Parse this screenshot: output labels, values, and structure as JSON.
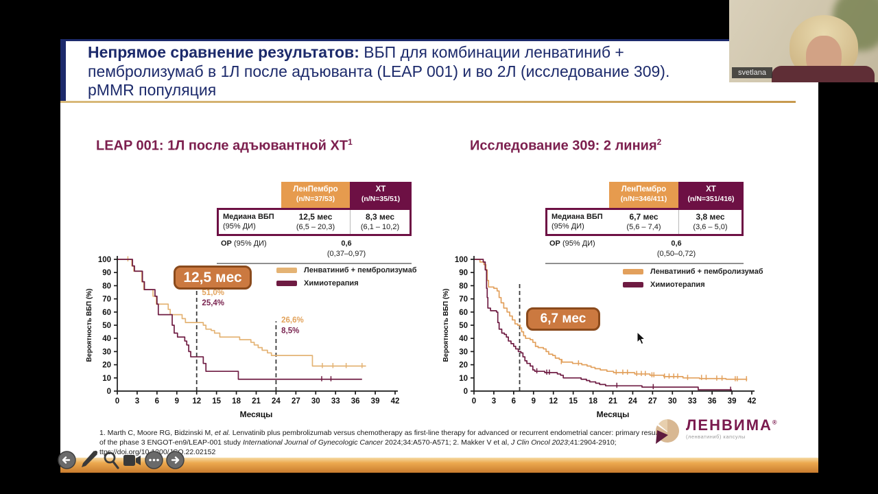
{
  "meeting": {
    "participant_name": "svetlana"
  },
  "title": {
    "bold": "Непрямое сравнение результатов:",
    "line1_rest": " ВБП для комбинации ленватиниб +",
    "line2": "пембролизумаб в 1Л после адъюванта (LEAP 001) и во 2Л (исследование 309).",
    "line3": "pMMR популяция"
  },
  "panels": [
    {
      "table": {
        "columns": [
          {
            "name": "ЛенПембро",
            "n": "(n/N=37/53)"
          },
          {
            "name": "ХТ",
            "n": "(n/N=35/51)"
          }
        ],
        "median": {
          "label": "Медиана ВБП",
          "label_sub": "(95% ДИ)",
          "cells": [
            {
              "value": "12,5 мес",
              "ci": "(6,5 – 20,3)"
            },
            {
              "value": "8,3 мес",
              "ci": "(6,1 – 10,2)"
            }
          ]
        },
        "hr": {
          "label": "ОР",
          "label_sub": " (95% ДИ)",
          "value": "0,6",
          "ci": "(0,37–0,97)"
        }
      }
    },
    {
      "table": {
        "columns": [
          {
            "name": "ЛенПембро",
            "n": "(n/N=346/411)"
          },
          {
            "name": "ХТ",
            "n": "(n/N=351/416)"
          }
        ],
        "median": {
          "label": "Медиана ВБП",
          "label_sub": "(95% ДИ)",
          "cells": [
            {
              "value": "6,7 мес",
              "ci": "(5,6 – 7,4)"
            },
            {
              "value": "3,8 мес",
              "ci": "(3,6 – 5,0)"
            }
          ]
        },
        "hr": {
          "label": "ОР",
          "label_sub": " (95% ДИ)",
          "value": "0,6",
          "ci": "(0,50–0,72)"
        }
      }
    }
  ],
  "chart_data": [
    {
      "type": "line",
      "subtype": "kaplan-meier-step",
      "title": "LEAP 001: 1Л после адъювантной ХТ",
      "title_sup": "1",
      "xlabel": "Месяцы",
      "ylabel": "Вероятность ВБП (%)",
      "xlim": [
        0,
        42
      ],
      "ylim": [
        0,
        100
      ],
      "xticks": [
        0,
        3,
        6,
        9,
        12,
        15,
        18,
        21,
        24,
        27,
        30,
        33,
        36,
        39,
        42
      ],
      "yticks": [
        0,
        10,
        20,
        30,
        40,
        50,
        60,
        70,
        80,
        90,
        100
      ],
      "median_label": "12,5 мес",
      "dashed_lines": [
        {
          "x": 12,
          "top": 78
        },
        {
          "x": 24,
          "top": 53
        }
      ],
      "annotations": [
        {
          "x": 12.8,
          "y": 73,
          "text": "51,0%",
          "color": "#e2a35c"
        },
        {
          "x": 12.8,
          "y": 65,
          "text": "25,4%",
          "color": "#7a2450"
        },
        {
          "x": 24.8,
          "y": 52,
          "text": "26,6%",
          "color": "#e2a35c"
        },
        {
          "x": 24.8,
          "y": 44,
          "text": "8,5%",
          "color": "#7a2450"
        }
      ],
      "series": [
        {
          "name": "Ленватиниб + пембролизумаб",
          "color": "#e4b374",
          "points": [
            [
              0,
              100
            ],
            [
              1.9,
              100
            ],
            [
              2.2,
              95
            ],
            [
              2.5,
              91
            ],
            [
              3.4,
              91
            ],
            [
              3.7,
              83
            ],
            [
              4.0,
              77
            ],
            [
              5.1,
              77
            ],
            [
              5.4,
              72
            ],
            [
              5.9,
              66
            ],
            [
              7.4,
              66
            ],
            [
              7.7,
              62
            ],
            [
              8.0,
              58
            ],
            [
              9.4,
              58
            ],
            [
              9.8,
              55
            ],
            [
              10.3,
              52
            ],
            [
              12.5,
              52
            ],
            [
              13.0,
              50
            ],
            [
              13.4,
              47
            ],
            [
              14.2,
              46
            ],
            [
              14.7,
              44
            ],
            [
              15.5,
              41
            ],
            [
              18.1,
              41
            ],
            [
              18.5,
              39
            ],
            [
              19.6,
              39
            ],
            [
              20.2,
              37
            ],
            [
              20.7,
              35
            ],
            [
              21.3,
              33
            ],
            [
              21.9,
              31
            ],
            [
              22.7,
              29
            ],
            [
              23.3,
              27
            ],
            [
              29.2,
              27
            ],
            [
              29.5,
              19
            ],
            [
              37.6,
              19
            ]
          ],
          "censor": [
            [
              1.6,
              100
            ],
            [
              31.0,
              19
            ],
            [
              32.6,
              19
            ],
            [
              34.6,
              19
            ],
            [
              37.0,
              19
            ]
          ]
        },
        {
          "name": "Химиотерапия",
          "color": "#6e1b42",
          "points": [
            [
              0,
              100
            ],
            [
              2.0,
              100
            ],
            [
              2.3,
              95
            ],
            [
              2.6,
              91
            ],
            [
              3.5,
              91
            ],
            [
              3.8,
              83
            ],
            [
              4.1,
              77
            ],
            [
              5.4,
              77
            ],
            [
              5.7,
              72
            ],
            [
              6.0,
              66
            ],
            [
              6.2,
              58
            ],
            [
              8.0,
              58
            ],
            [
              8.3,
              50
            ],
            [
              8.6,
              44
            ],
            [
              9.1,
              41
            ],
            [
              9.9,
              41
            ],
            [
              10.2,
              38
            ],
            [
              10.5,
              35
            ],
            [
              10.8,
              30
            ],
            [
              11.1,
              26
            ],
            [
              12.7,
              26
            ],
            [
              13.0,
              21
            ],
            [
              13.4,
              15
            ],
            [
              18.0,
              15
            ],
            [
              18.3,
              9
            ],
            [
              37.0,
              9
            ]
          ],
          "censor": [
            [
              30.9,
              9
            ],
            [
              32.3,
              9
            ]
          ]
        }
      ]
    },
    {
      "type": "line",
      "subtype": "kaplan-meier-step",
      "title": "Исследование 309: 2 линия",
      "title_sup": "2",
      "xlabel": "Месяцы",
      "ylabel": "Вероятность ВБП (%)",
      "xlim": [
        0,
        42
      ],
      "ylim": [
        0,
        100
      ],
      "xticks": [
        0,
        3,
        6,
        9,
        12,
        15,
        18,
        21,
        24,
        27,
        30,
        33,
        36,
        39,
        42
      ],
      "yticks": [
        0,
        10,
        20,
        30,
        40,
        50,
        60,
        70,
        80,
        90,
        100
      ],
      "median_label": "6,7 мес",
      "dashed_lines": [
        {
          "x": 6.9,
          "top": 82
        }
      ],
      "annotations": [],
      "series": [
        {
          "name": "Ленватиниб + пембролизумаб",
          "color": "#e2a05c",
          "points": [
            [
              0,
              100
            ],
            [
              0.9,
              98
            ],
            [
              1.5,
              96
            ],
            [
              1.8,
              92
            ],
            [
              2.0,
              84
            ],
            [
              2.2,
              79
            ],
            [
              3.0,
              78
            ],
            [
              3.5,
              76
            ],
            [
              3.8,
              71
            ],
            [
              4.1,
              67
            ],
            [
              4.5,
              63
            ],
            [
              5.0,
              60
            ],
            [
              5.4,
              57
            ],
            [
              5.8,
              54
            ],
            [
              6.2,
              51
            ],
            [
              6.6,
              50
            ],
            [
              7.0,
              48
            ],
            [
              7.2,
              45
            ],
            [
              7.5,
              42
            ],
            [
              7.8,
              40
            ],
            [
              8.5,
              39
            ],
            [
              8.9,
              37
            ],
            [
              9.3,
              34
            ],
            [
              9.7,
              33
            ],
            [
              10.5,
              32
            ],
            [
              10.9,
              30
            ],
            [
              11.3,
              28
            ],
            [
              11.9,
              27
            ],
            [
              12.3,
              25
            ],
            [
              12.9,
              24
            ],
            [
              13.3,
              22
            ],
            [
              14.1,
              22
            ],
            [
              14.9,
              21
            ],
            [
              16.3,
              20
            ],
            [
              17.1,
              19
            ],
            [
              17.7,
              18
            ],
            [
              18.3,
              17
            ],
            [
              19.1,
              16
            ],
            [
              20.1,
              15
            ],
            [
              21.1,
              14
            ],
            [
              23.6,
              14
            ],
            [
              24.3,
              13
            ],
            [
              26.6,
              12
            ],
            [
              28.7,
              11
            ],
            [
              31.6,
              10
            ],
            [
              34.1,
              9.5
            ],
            [
              38.1,
              9
            ],
            [
              41.3,
              9
            ]
          ],
          "censor": [
            [
              9.3,
              35
            ],
            [
              13.2,
              22
            ],
            [
              15.8,
              21
            ],
            [
              21.5,
              14
            ],
            [
              22.5,
              14
            ],
            [
              23.2,
              14
            ],
            [
              24.6,
              13
            ],
            [
              25.3,
              13
            ],
            [
              25.9,
              13
            ],
            [
              26.9,
              12
            ],
            [
              27.2,
              12
            ],
            [
              28.8,
              11
            ],
            [
              29.5,
              11
            ],
            [
              30.2,
              11
            ],
            [
              30.8,
              11
            ],
            [
              32.3,
              10
            ],
            [
              34.4,
              10
            ],
            [
              35.1,
              10
            ],
            [
              36.7,
              9.5
            ],
            [
              37.5,
              9.5
            ],
            [
              39.5,
              9
            ],
            [
              39.8,
              9
            ],
            [
              41.2,
              9
            ]
          ]
        },
        {
          "name": "Химиотерапия",
          "color": "#6e1b42",
          "points": [
            [
              0,
              100
            ],
            [
              1.4,
              98
            ],
            [
              1.7,
              92
            ],
            [
              1.9,
              78
            ],
            [
              2.0,
              71
            ],
            [
              2.1,
              63
            ],
            [
              2.5,
              61
            ],
            [
              3.4,
              60
            ],
            [
              3.6,
              52
            ],
            [
              3.8,
              47
            ],
            [
              4.2,
              44
            ],
            [
              4.6,
              43
            ],
            [
              4.9,
              41
            ],
            [
              5.2,
              38
            ],
            [
              5.6,
              36
            ],
            [
              6.0,
              34
            ],
            [
              6.3,
              32
            ],
            [
              6.7,
              30
            ],
            [
              7.1,
              29
            ],
            [
              7.4,
              26
            ],
            [
              7.7,
              23
            ],
            [
              8.0,
              21
            ],
            [
              8.5,
              19
            ],
            [
              8.9,
              16
            ],
            [
              9.2,
              15
            ],
            [
              10.4,
              15
            ],
            [
              10.7,
              14
            ],
            [
              12.2,
              14
            ],
            [
              12.6,
              13
            ],
            [
              13.1,
              12
            ],
            [
              13.5,
              10
            ],
            [
              15.4,
              10
            ],
            [
              16.2,
              9
            ],
            [
              17.0,
              8
            ],
            [
              17.5,
              7
            ],
            [
              18.4,
              6
            ],
            [
              19.0,
              5
            ],
            [
              19.9,
              4
            ],
            [
              24.9,
              4
            ],
            [
              25.4,
              3
            ],
            [
              33.4,
              3
            ],
            [
              33.9,
              1
            ],
            [
              38.8,
              1
            ],
            [
              38.9,
              0
            ]
          ],
          "censor": [
            [
              9.5,
              15
            ],
            [
              11.0,
              14
            ],
            [
              11.4,
              14
            ],
            [
              21.6,
              4
            ],
            [
              27.1,
              3
            ],
            [
              38.8,
              1
            ]
          ]
        }
      ]
    }
  ],
  "footer": {
    "segments": [
      {
        "t": "1. Marth C, Moore RG, Bidzinski M, ",
        "i": false
      },
      {
        "t": "et al.",
        "i": true
      },
      {
        "t": " Lenvatinib plus pembrolizumab versus chemotherapy as first-line therapy for advanced or recurrent endometrial cancer: primary results of the phase 3 ENGOT-en9/LEAP-001 study ",
        "i": false
      },
      {
        "t": "International Journal of Gynecologic Cancer",
        "i": true
      },
      {
        "t": " 2024;34:A570-A571; 2. Makker V et al, ",
        "i": false
      },
      {
        "t": "J Clin Oncol 2023",
        "i": true
      },
      {
        "t": ";41:2904-2910; ttps://doi.org/10.1200/JCO.22.02152",
        "i": false
      }
    ]
  },
  "logo": {
    "brand": "ЛЕНВИМА",
    "reg": "®",
    "sub": "(ленватиниб) капсулы"
  },
  "toolbar": {
    "icons": [
      "previous-slide",
      "pen",
      "magnifier",
      "camera",
      "more-options",
      "next-slide"
    ]
  }
}
